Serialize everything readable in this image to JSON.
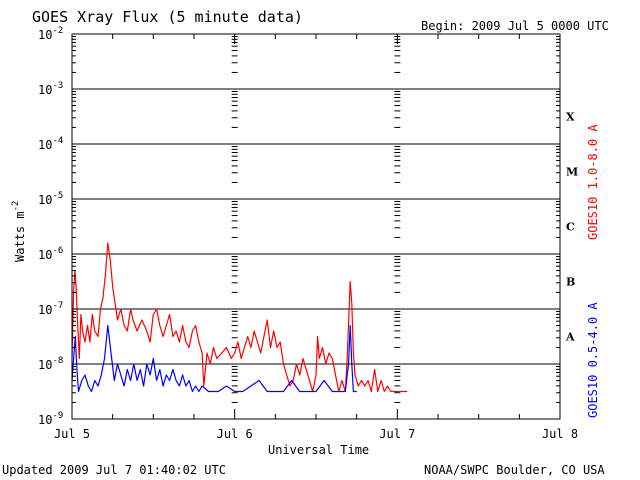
{
  "chart_data": {
    "type": "line",
    "title": "GOES Xray Flux (5 minute data)",
    "begin": "Begin:  2009 Jul 5 0000 UTC",
    "xlabel": "Universal Time",
    "ylabel": "Watts m",
    "ylabel_exponent": "-2",
    "updated": "Updated 2009 Jul  7 01:40:02 UTC",
    "credit": "NOAA/SWPC Boulder, CO USA",
    "x_unit": "days since 2009 Jul 5 0000 UTC",
    "xlim": [
      0,
      3
    ],
    "x_ticks": [
      {
        "value": 0,
        "label": "Jul 5"
      },
      {
        "value": 1,
        "label": "Jul 6"
      },
      {
        "value": 2,
        "label": "Jul 7"
      },
      {
        "value": 3,
        "label": "Jul 8"
      }
    ],
    "y_scale": "log",
    "ylim_exp": [
      -9,
      -2
    ],
    "y_ticks": [
      {
        "exp": -9,
        "base": "10",
        "sup": "-9"
      },
      {
        "exp": -8,
        "base": "10",
        "sup": "-8"
      },
      {
        "exp": -7,
        "base": "10",
        "sup": "-7"
      },
      {
        "exp": -6,
        "base": "10",
        "sup": "-6"
      },
      {
        "exp": -5,
        "base": "10",
        "sup": "-5"
      },
      {
        "exp": -4,
        "base": "10",
        "sup": "-4"
      },
      {
        "exp": -3,
        "base": "10",
        "sup": "-3"
      },
      {
        "exp": -2,
        "base": "10",
        "sup": "-2"
      }
    ],
    "flare_classes": [
      {
        "label": "X",
        "exp": -3.5
      },
      {
        "label": "M",
        "exp": -4.5
      },
      {
        "label": "C",
        "exp": -5.5
      },
      {
        "label": "B",
        "exp": -6.5
      },
      {
        "label": "A",
        "exp": -7.5
      }
    ],
    "grid_lines_exp": [
      -8,
      -7,
      -6,
      -5,
      -4,
      -3
    ],
    "series": [
      {
        "name": "GOES10 1.0-8.0 A",
        "color": "#ff0000",
        "points": [
          [
            0.0,
            -7.9
          ],
          [
            0.01,
            -6.7
          ],
          [
            0.018,
            -6.3
          ],
          [
            0.025,
            -6.6
          ],
          [
            0.035,
            -7.3
          ],
          [
            0.045,
            -7.9
          ],
          [
            0.055,
            -7.1
          ],
          [
            0.065,
            -7.4
          ],
          [
            0.08,
            -7.6
          ],
          [
            0.095,
            -7.3
          ],
          [
            0.11,
            -7.6
          ],
          [
            0.125,
            -7.1
          ],
          [
            0.14,
            -7.4
          ],
          [
            0.16,
            -7.5
          ],
          [
            0.175,
            -7.0
          ],
          [
            0.19,
            -6.8
          ],
          [
            0.205,
            -6.4
          ],
          [
            0.22,
            -5.8
          ],
          [
            0.235,
            -6.1
          ],
          [
            0.25,
            -6.6
          ],
          [
            0.265,
            -6.9
          ],
          [
            0.28,
            -7.2
          ],
          [
            0.3,
            -7.0
          ],
          [
            0.32,
            -7.3
          ],
          [
            0.34,
            -7.4
          ],
          [
            0.36,
            -7.0
          ],
          [
            0.375,
            -7.2
          ],
          [
            0.4,
            -7.4
          ],
          [
            0.43,
            -7.2
          ],
          [
            0.46,
            -7.4
          ],
          [
            0.48,
            -7.6
          ],
          [
            0.5,
            -7.1
          ],
          [
            0.52,
            -7.0
          ],
          [
            0.54,
            -7.3
          ],
          [
            0.56,
            -7.5
          ],
          [
            0.58,
            -7.3
          ],
          [
            0.6,
            -7.1
          ],
          [
            0.62,
            -7.5
          ],
          [
            0.64,
            -7.4
          ],
          [
            0.66,
            -7.6
          ],
          [
            0.68,
            -7.3
          ],
          [
            0.7,
            -7.6
          ],
          [
            0.72,
            -7.7
          ],
          [
            0.74,
            -7.4
          ],
          [
            0.76,
            -7.3
          ],
          [
            0.78,
            -7.6
          ],
          [
            0.8,
            -7.8
          ],
          [
            0.81,
            -8.4
          ],
          [
            0.83,
            -7.8
          ],
          [
            0.85,
            -8.0
          ],
          [
            0.87,
            -7.7
          ],
          [
            0.89,
            -7.9
          ],
          [
            0.92,
            -7.8
          ],
          [
            0.95,
            -7.7
          ],
          [
            0.98,
            -7.9
          ],
          [
            1.0,
            -7.8
          ],
          [
            1.02,
            -7.6
          ],
          [
            1.04,
            -7.9
          ],
          [
            1.06,
            -7.7
          ],
          [
            1.08,
            -7.5
          ],
          [
            1.1,
            -7.7
          ],
          [
            1.12,
            -7.4
          ],
          [
            1.14,
            -7.6
          ],
          [
            1.16,
            -7.8
          ],
          [
            1.18,
            -7.5
          ],
          [
            1.2,
            -7.2
          ],
          [
            1.22,
            -7.7
          ],
          [
            1.24,
            -7.4
          ],
          [
            1.26,
            -7.7
          ],
          [
            1.28,
            -7.6
          ],
          [
            1.3,
            -8.0
          ],
          [
            1.32,
            -8.2
          ],
          [
            1.34,
            -8.4
          ],
          [
            1.36,
            -8.3
          ],
          [
            1.38,
            -8.0
          ],
          [
            1.4,
            -8.2
          ],
          [
            1.42,
            -7.9
          ],
          [
            1.44,
            -8.1
          ],
          [
            1.46,
            -8.3
          ],
          [
            1.48,
            -8.5
          ],
          [
            1.5,
            -8.2
          ],
          [
            1.51,
            -7.5
          ],
          [
            1.52,
            -7.9
          ],
          [
            1.54,
            -7.7
          ],
          [
            1.56,
            -8.0
          ],
          [
            1.58,
            -7.8
          ],
          [
            1.6,
            -7.9
          ],
          [
            1.62,
            -8.2
          ],
          [
            1.64,
            -8.5
          ],
          [
            1.66,
            -8.3
          ],
          [
            1.68,
            -8.5
          ],
          [
            1.69,
            -8.0
          ],
          [
            1.7,
            -7.3
          ],
          [
            1.71,
            -6.5
          ],
          [
            1.72,
            -6.9
          ],
          [
            1.73,
            -7.8
          ],
          [
            1.74,
            -8.2
          ],
          [
            1.76,
            -8.4
          ],
          [
            1.78,
            -8.3
          ],
          [
            1.8,
            -8.4
          ],
          [
            1.82,
            -8.3
          ],
          [
            1.84,
            -8.5
          ],
          [
            1.86,
            -8.1
          ],
          [
            1.88,
            -8.5
          ],
          [
            1.9,
            -8.3
          ],
          [
            1.92,
            -8.5
          ],
          [
            1.94,
            -8.4
          ],
          [
            1.96,
            -8.5
          ],
          [
            2.0,
            -8.5
          ],
          [
            2.06,
            -8.5
          ]
        ]
      },
      {
        "name": "GOES10 0.5-4.0 A",
        "color": "#0000ff",
        "points": [
          [
            0.0,
            -8.3
          ],
          [
            0.01,
            -7.9
          ],
          [
            0.02,
            -7.5
          ],
          [
            0.03,
            -8.1
          ],
          [
            0.04,
            -8.5
          ],
          [
            0.06,
            -8.3
          ],
          [
            0.08,
            -8.2
          ],
          [
            0.1,
            -8.4
          ],
          [
            0.12,
            -8.5
          ],
          [
            0.14,
            -8.3
          ],
          [
            0.16,
            -8.4
          ],
          [
            0.18,
            -8.2
          ],
          [
            0.2,
            -7.9
          ],
          [
            0.22,
            -7.3
          ],
          [
            0.24,
            -7.8
          ],
          [
            0.26,
            -8.3
          ],
          [
            0.28,
            -8.0
          ],
          [
            0.3,
            -8.2
          ],
          [
            0.32,
            -8.4
          ],
          [
            0.34,
            -8.1
          ],
          [
            0.36,
            -8.3
          ],
          [
            0.38,
            -8.0
          ],
          [
            0.4,
            -8.3
          ],
          [
            0.42,
            -8.1
          ],
          [
            0.44,
            -8.4
          ],
          [
            0.46,
            -8.0
          ],
          [
            0.48,
            -8.2
          ],
          [
            0.5,
            -7.9
          ],
          [
            0.52,
            -8.3
          ],
          [
            0.54,
            -8.1
          ],
          [
            0.56,
            -8.4
          ],
          [
            0.58,
            -8.2
          ],
          [
            0.6,
            -8.3
          ],
          [
            0.62,
            -8.1
          ],
          [
            0.64,
            -8.3
          ],
          [
            0.66,
            -8.4
          ],
          [
            0.68,
            -8.2
          ],
          [
            0.7,
            -8.4
          ],
          [
            0.72,
            -8.3
          ],
          [
            0.74,
            -8.5
          ],
          [
            0.76,
            -8.4
          ],
          [
            0.78,
            -8.5
          ],
          [
            0.8,
            -8.4
          ],
          [
            0.84,
            -8.5
          ],
          [
            0.9,
            -8.5
          ],
          [
            0.95,
            -8.4
          ],
          [
            1.0,
            -8.5
          ],
          [
            1.05,
            -8.5
          ],
          [
            1.1,
            -8.4
          ],
          [
            1.15,
            -8.3
          ],
          [
            1.2,
            -8.5
          ],
          [
            1.3,
            -8.5
          ],
          [
            1.35,
            -8.3
          ],
          [
            1.4,
            -8.5
          ],
          [
            1.5,
            -8.5
          ],
          [
            1.55,
            -8.3
          ],
          [
            1.6,
            -8.5
          ],
          [
            1.68,
            -8.5
          ],
          [
            1.7,
            -8.0
          ],
          [
            1.71,
            -7.3
          ],
          [
            1.72,
            -8.0
          ],
          [
            1.73,
            -8.5
          ],
          [
            1.75,
            -8.5
          ]
        ]
      }
    ]
  }
}
